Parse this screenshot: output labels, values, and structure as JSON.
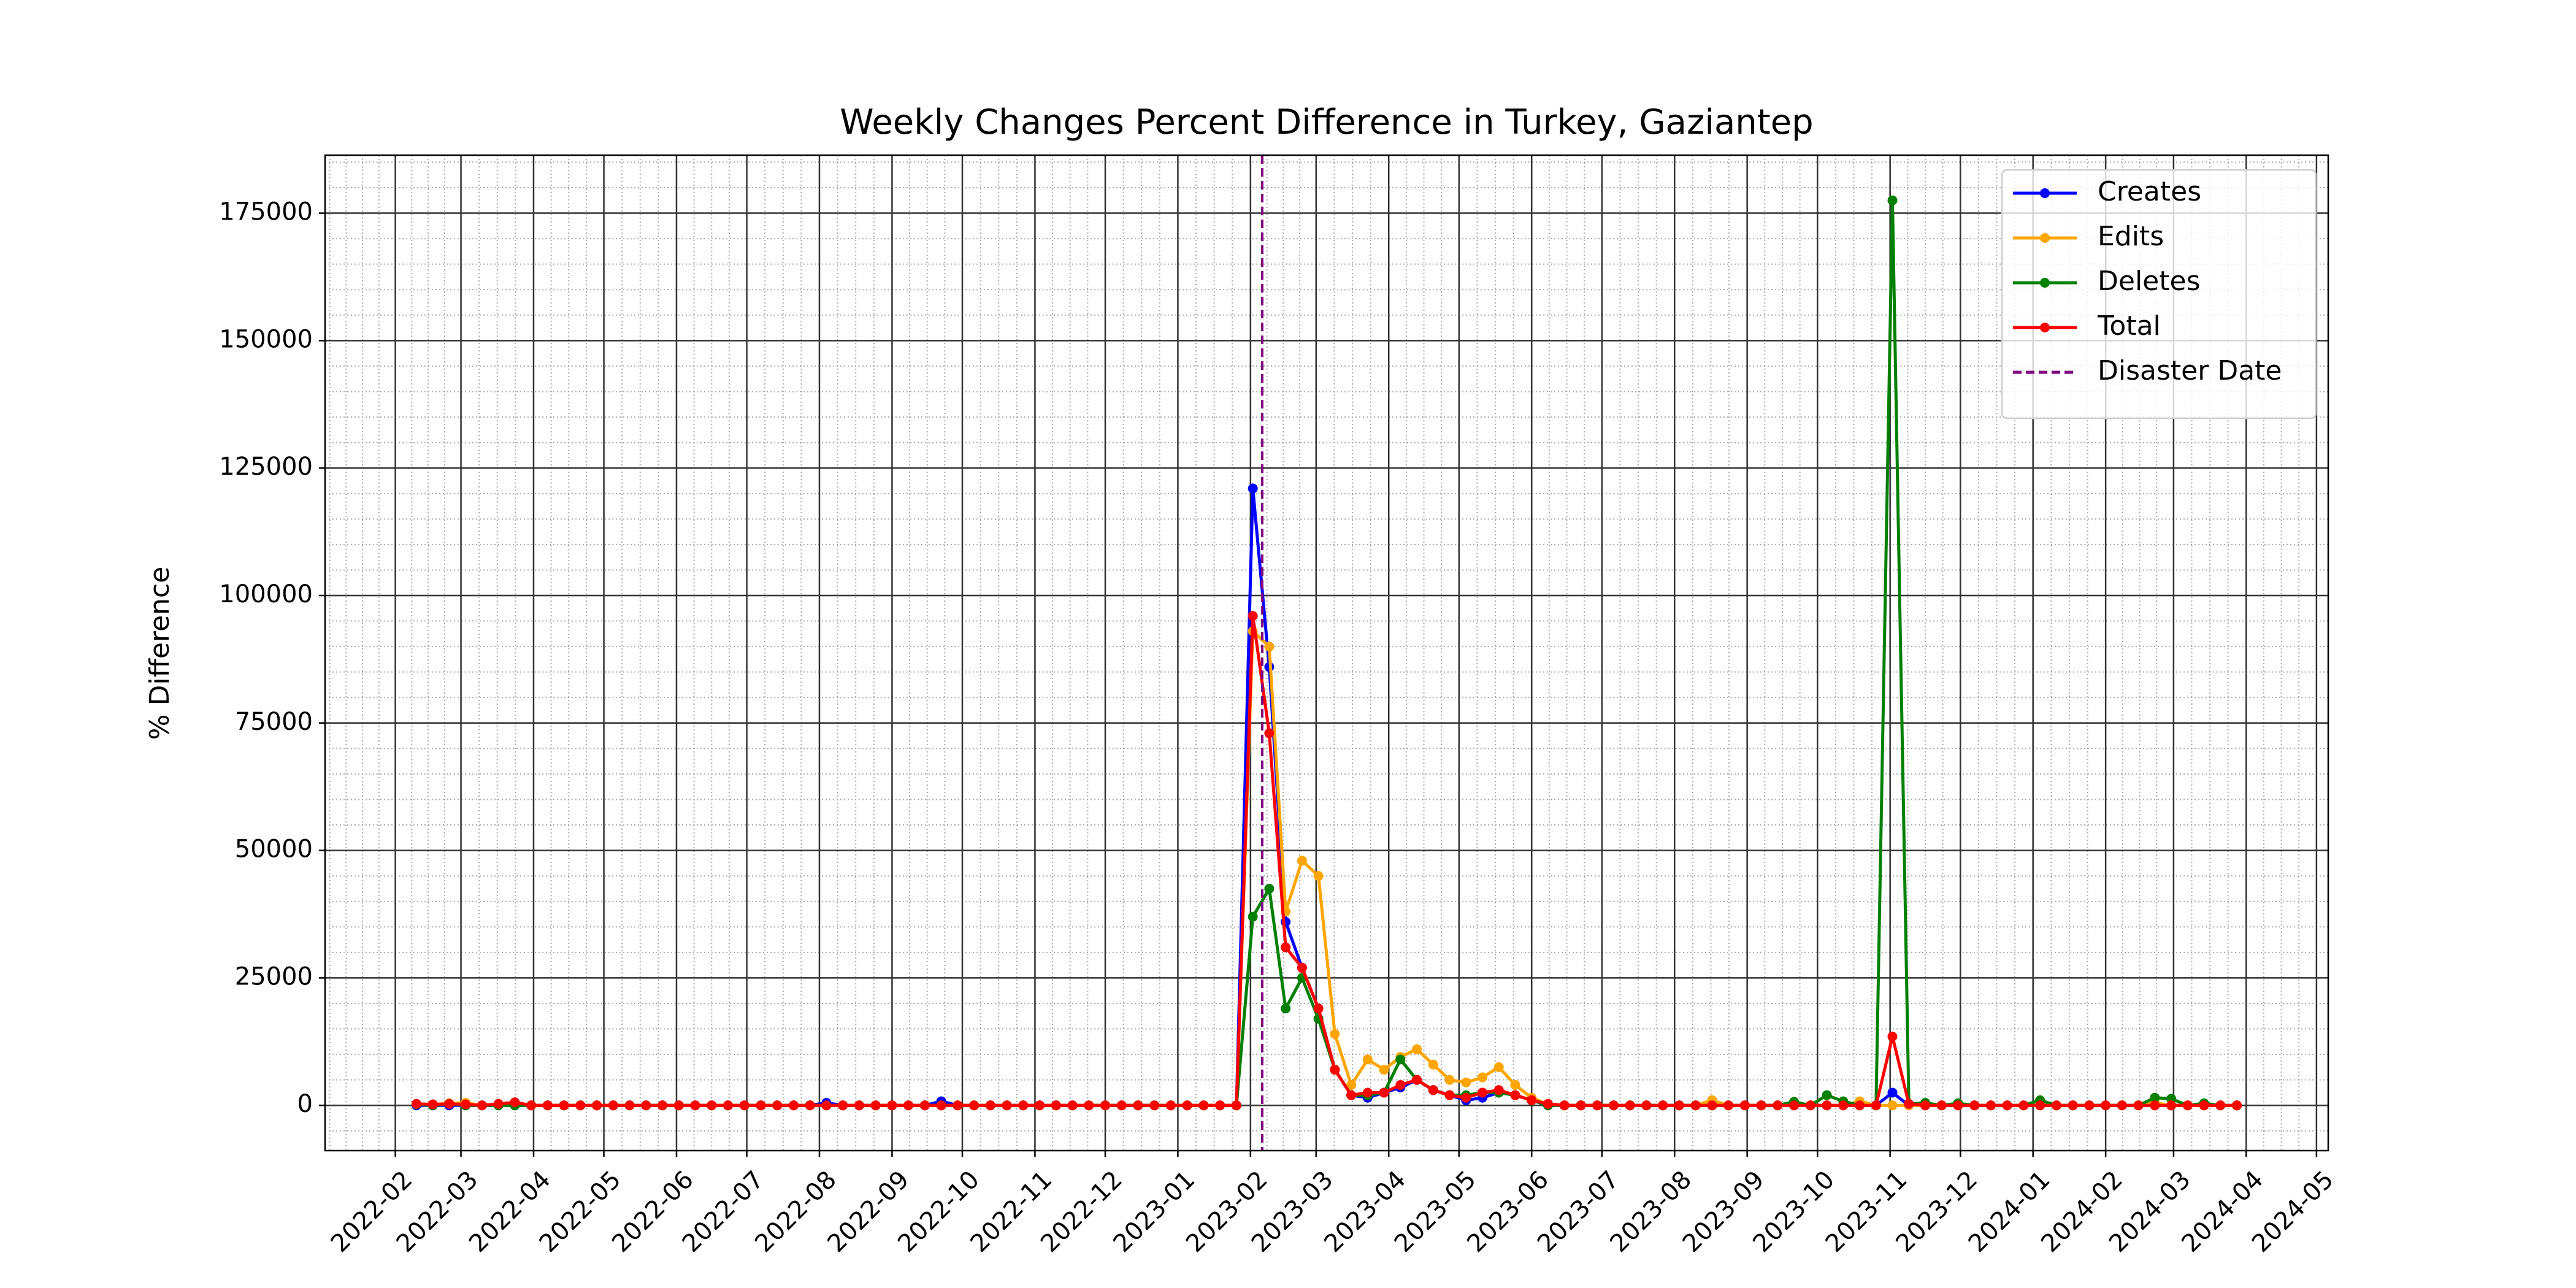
{
  "chart_data": {
    "type": "line",
    "title": "Weekly Changes Percent Difference in Turkey, Gaziantep",
    "ylabel": "% Difference",
    "x": [
      "2022-02-10",
      "2022-02-17",
      "2022-02-24",
      "2022-03-03",
      "2022-03-10",
      "2022-03-17",
      "2022-03-24",
      "2022-03-31",
      "2022-04-07",
      "2022-04-14",
      "2022-04-21",
      "2022-04-28",
      "2022-05-05",
      "2022-05-12",
      "2022-05-19",
      "2022-05-26",
      "2022-06-02",
      "2022-06-09",
      "2022-06-16",
      "2022-06-23",
      "2022-06-30",
      "2022-07-07",
      "2022-07-14",
      "2022-07-21",
      "2022-07-28",
      "2022-08-04",
      "2022-08-11",
      "2022-08-18",
      "2022-08-25",
      "2022-09-01",
      "2022-09-08",
      "2022-09-15",
      "2022-09-22",
      "2022-09-29",
      "2022-10-06",
      "2022-10-13",
      "2022-10-20",
      "2022-10-27",
      "2022-11-03",
      "2022-11-10",
      "2022-11-17",
      "2022-11-24",
      "2022-12-01",
      "2022-12-08",
      "2022-12-15",
      "2022-12-22",
      "2022-12-29",
      "2023-01-05",
      "2023-01-12",
      "2023-01-19",
      "2023-01-26",
      "2023-02-02",
      "2023-02-09",
      "2023-02-16",
      "2023-02-23",
      "2023-03-02",
      "2023-03-09",
      "2023-03-16",
      "2023-03-23",
      "2023-03-30",
      "2023-04-06",
      "2023-04-13",
      "2023-04-20",
      "2023-04-27",
      "2023-05-04",
      "2023-05-11",
      "2023-05-18",
      "2023-05-25",
      "2023-06-01",
      "2023-06-08",
      "2023-06-15",
      "2023-06-22",
      "2023-06-29",
      "2023-07-06",
      "2023-07-13",
      "2023-07-20",
      "2023-07-27",
      "2023-08-03",
      "2023-08-10",
      "2023-08-17",
      "2023-08-24",
      "2023-08-31",
      "2023-09-07",
      "2023-09-14",
      "2023-09-21",
      "2023-09-28",
      "2023-10-05",
      "2023-10-12",
      "2023-10-19",
      "2023-10-26",
      "2023-11-02",
      "2023-11-09",
      "2023-11-16",
      "2023-11-23",
      "2023-11-30",
      "2023-12-07",
      "2023-12-14",
      "2023-12-21",
      "2023-12-28",
      "2024-01-04",
      "2024-01-11",
      "2024-01-18",
      "2024-01-25",
      "2024-02-01",
      "2024-02-08",
      "2024-02-15",
      "2024-02-22",
      "2024-02-29",
      "2024-03-07",
      "2024-03-14",
      "2024-03-21",
      "2024-03-28"
    ],
    "series": [
      {
        "name": "Creates",
        "color": "#0000ff",
        "values": [
          0,
          0,
          0,
          0,
          0,
          0,
          0,
          0,
          0,
          0,
          0,
          0,
          0,
          0,
          0,
          0,
          0,
          0,
          0,
          0,
          0,
          0,
          0,
          0,
          0,
          500,
          0,
          0,
          0,
          0,
          0,
          0,
          800,
          0,
          0,
          0,
          0,
          0,
          0,
          0,
          0,
          0,
          0,
          0,
          0,
          0,
          0,
          0,
          0,
          0,
          0,
          121000,
          86000,
          36000,
          27000,
          19000,
          7000,
          2000,
          1500,
          2500,
          3500,
          5000,
          3000,
          2000,
          1000,
          1500,
          2500,
          2000,
          1000,
          0,
          0,
          0,
          0,
          0,
          0,
          0,
          0,
          0,
          0,
          0,
          0,
          0,
          0,
          0,
          0,
          0,
          0,
          0,
          0,
          0,
          2500,
          0,
          0,
          0,
          0,
          0,
          0,
          0,
          0,
          0,
          0,
          0,
          0,
          0,
          0,
          0,
          0,
          0,
          0,
          0,
          0,
          0
        ]
      },
      {
        "name": "Edits",
        "color": "#ffa500",
        "values": [
          300,
          200,
          400,
          500,
          0,
          100,
          300,
          0,
          0,
          0,
          0,
          0,
          0,
          0,
          0,
          0,
          0,
          0,
          0,
          0,
          0,
          0,
          0,
          0,
          0,
          0,
          0,
          0,
          0,
          0,
          0,
          0,
          0,
          0,
          0,
          0,
          0,
          0,
          0,
          0,
          0,
          0,
          0,
          0,
          0,
          0,
          0,
          0,
          0,
          0,
          0,
          93000,
          90000,
          38000,
          48000,
          45000,
          14000,
          4000,
          9000,
          7000,
          9500,
          11000,
          8000,
          5000,
          4500,
          5500,
          7500,
          4000,
          1500,
          200,
          0,
          0,
          0,
          0,
          0,
          0,
          0,
          0,
          0,
          1000,
          0,
          0,
          0,
          0,
          0,
          0,
          0,
          0,
          800,
          0,
          0,
          0,
          0,
          0,
          0,
          0,
          0,
          0,
          0,
          0,
          0,
          0,
          0,
          0,
          0,
          0,
          500,
          0,
          0,
          0,
          0,
          0
        ]
      },
      {
        "name": "Deletes",
        "color": "#008000",
        "values": [
          200,
          0,
          300,
          0,
          0,
          0,
          0,
          0,
          0,
          0,
          0,
          0,
          0,
          0,
          0,
          0,
          0,
          0,
          0,
          0,
          0,
          0,
          0,
          0,
          0,
          0,
          0,
          0,
          0,
          0,
          0,
          0,
          0,
          0,
          0,
          0,
          0,
          0,
          0,
          0,
          0,
          0,
          0,
          0,
          0,
          0,
          0,
          0,
          0,
          0,
          0,
          37000,
          42500,
          19000,
          25000,
          17000,
          7000,
          2000,
          2000,
          2500,
          9000,
          5000,
          3000,
          2000,
          2000,
          2500,
          2500,
          2000,
          1000,
          0,
          0,
          0,
          0,
          0,
          0,
          0,
          0,
          0,
          0,
          0,
          0,
          0,
          0,
          0,
          700,
          0,
          2000,
          800,
          0,
          0,
          177500,
          300,
          500,
          0,
          400,
          0,
          0,
          0,
          0,
          1000,
          0,
          0,
          0,
          0,
          0,
          0,
          1500,
          1300,
          0,
          400,
          0,
          0
        ]
      },
      {
        "name": "Total",
        "color": "#ff0000",
        "values": [
          300,
          200,
          300,
          200,
          0,
          300,
          600,
          0,
          0,
          0,
          0,
          0,
          0,
          0,
          0,
          0,
          0,
          0,
          0,
          0,
          0,
          0,
          0,
          0,
          0,
          0,
          0,
          0,
          0,
          0,
          0,
          0,
          0,
          0,
          0,
          0,
          0,
          0,
          0,
          0,
          0,
          0,
          0,
          0,
          0,
          0,
          0,
          0,
          0,
          0,
          0,
          96000,
          73000,
          31000,
          27000,
          19000,
          7000,
          2000,
          2500,
          2500,
          4000,
          5000,
          3000,
          2000,
          1500,
          2500,
          3000,
          2000,
          1000,
          300,
          0,
          0,
          0,
          0,
          0,
          0,
          0,
          0,
          0,
          0,
          0,
          0,
          0,
          0,
          0,
          0,
          0,
          0,
          0,
          0,
          13500,
          300,
          0,
          0,
          0,
          0,
          0,
          0,
          0,
          0,
          0,
          0,
          0,
          0,
          0,
          0,
          0,
          0,
          0,
          0,
          0,
          0
        ]
      }
    ],
    "vline": {
      "name": "Disaster Date",
      "x": "2023-02-06",
      "color": "#800080"
    },
    "xlim": [
      "2022-01-02",
      "2024-05-06"
    ],
    "xticks": [
      "2022-02",
      "2022-03",
      "2022-04",
      "2022-05",
      "2022-06",
      "2022-07",
      "2022-08",
      "2022-09",
      "2022-10",
      "2022-11",
      "2022-12",
      "2023-01",
      "2023-02",
      "2023-03",
      "2023-04",
      "2023-05",
      "2023-06",
      "2023-07",
      "2023-08",
      "2023-09",
      "2023-10",
      "2023-11",
      "2023-12",
      "2024-01",
      "2024-02",
      "2024-03",
      "2024-04",
      "2024-05"
    ],
    "ylim": [
      -8875,
      186375
    ],
    "yticks": [
      0,
      25000,
      50000,
      75000,
      100000,
      125000,
      150000,
      175000
    ],
    "grid": true,
    "legend": "upper right"
  }
}
